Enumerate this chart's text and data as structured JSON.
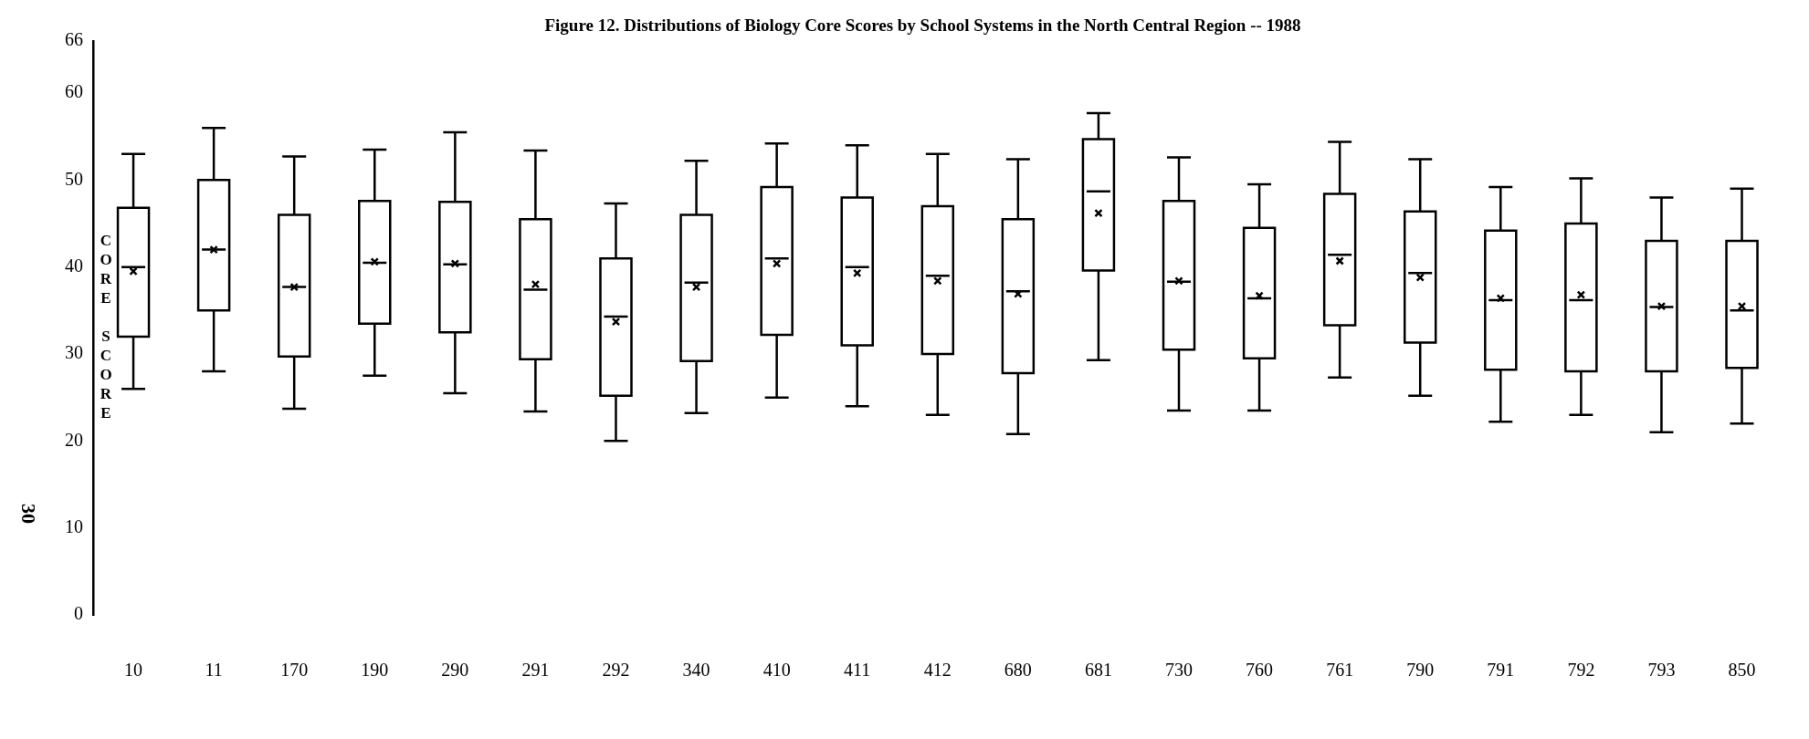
{
  "chart_data": {
    "type": "box",
    "title": "Figure 12. Distributions of Biology Core Scores by School Systems in the North Central Region -- 1988",
    "ylabel": "CORE SCORE",
    "annotations": [
      "30"
    ],
    "categories": [
      "10",
      "11",
      "170",
      "190",
      "290",
      "291",
      "292",
      "340",
      "410",
      "411",
      "412",
      "680",
      "681",
      "730",
      "760",
      "761",
      "790",
      "791",
      "792",
      "793",
      "850"
    ],
    "boxes": [
      {
        "low": 26,
        "q1": 32,
        "median": 40,
        "q3": 46.8,
        "high": 53,
        "mean": 39.5
      },
      {
        "low": 28,
        "q1": 35,
        "median": 42,
        "q3": 50,
        "high": 56,
        "mean": 42
      },
      {
        "low": 23.7,
        "q1": 29.7,
        "median": 37.7,
        "q3": 46,
        "high": 52.7,
        "mean": 37.7
      },
      {
        "low": 27.5,
        "q1": 33.5,
        "median": 40.5,
        "q3": 47.6,
        "high": 53.5,
        "mean": 40.6
      },
      {
        "low": 25.5,
        "q1": 32.5,
        "median": 40.3,
        "q3": 47.5,
        "high": 55.5,
        "mean": 40.4
      },
      {
        "low": 23.4,
        "q1": 29.4,
        "median": 37.4,
        "q3": 45.5,
        "high": 53.4,
        "mean": 38
      },
      {
        "low": 20,
        "q1": 25.2,
        "median": 34.3,
        "q3": 41,
        "high": 47.3,
        "mean": 33.7
      },
      {
        "low": 23.2,
        "q1": 29.2,
        "median": 38.2,
        "q3": 46,
        "high": 52.2,
        "mean": 37.7
      },
      {
        "low": 25,
        "q1": 32.2,
        "median": 41,
        "q3": 49.2,
        "high": 54.2,
        "mean": 40.4
      },
      {
        "low": 24,
        "q1": 31,
        "median": 40,
        "q3": 48,
        "high": 54,
        "mean": 39.3
      },
      {
        "low": 23,
        "q1": 30,
        "median": 39,
        "q3": 47,
        "high": 53,
        "mean": 38.4
      },
      {
        "low": 20.8,
        "q1": 27.8,
        "median": 37.2,
        "q3": 45.5,
        "high": 52.4,
        "mean": 36.9
      },
      {
        "low": 29.3,
        "q1": 39.6,
        "median": 48.7,
        "q3": 54.7,
        "high": 57.7,
        "mean": 46.2
      },
      {
        "low": 23.5,
        "q1": 30.5,
        "median": 38.3,
        "q3": 47.6,
        "high": 52.6,
        "mean": 38.4
      },
      {
        "low": 23.5,
        "q1": 29.5,
        "median": 36.4,
        "q3": 44.5,
        "high": 49.5,
        "mean": 36.7
      },
      {
        "low": 27.3,
        "q1": 33.3,
        "median": 41.4,
        "q3": 48.4,
        "high": 54.4,
        "mean": 40.7
      },
      {
        "low": 25.2,
        "q1": 31.3,
        "median": 39.3,
        "q3": 46.4,
        "high": 52.4,
        "mean": 38.8
      },
      {
        "low": 22.2,
        "q1": 28.2,
        "median": 36.2,
        "q3": 44.2,
        "high": 49.2,
        "mean": 36.4
      },
      {
        "low": 23,
        "q1": 28,
        "median": 36.2,
        "q3": 45,
        "high": 50.2,
        "mean": 36.8
      },
      {
        "low": 21,
        "q1": 28,
        "median": 35.4,
        "q3": 43,
        "high": 48,
        "mean": 35.5
      },
      {
        "low": 22,
        "q1": 28.4,
        "median": 35,
        "q3": 43,
        "high": 49,
        "mean": 35.5
      }
    ],
    "color": "#000000",
    "ylim": [
      0,
      66
    ],
    "yticks": [
      0,
      10,
      20,
      30,
      40,
      50,
      60,
      66
    ],
    "grid": false,
    "legend": false,
    "marker": "cross"
  }
}
